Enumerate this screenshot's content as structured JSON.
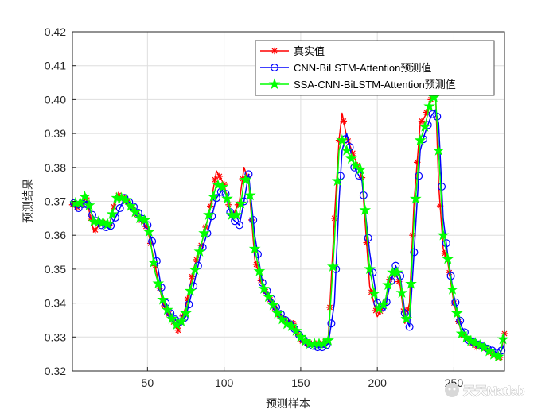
{
  "watermark": "天天Matlab",
  "chart_data": {
    "type": "line",
    "xlabel": "预测样本",
    "ylabel": "预测结果",
    "xlim": [
      1,
      283
    ],
    "ylim": [
      0.32,
      0.42
    ],
    "xticks": [
      50,
      100,
      150,
      200,
      250
    ],
    "yticks": [
      0.32,
      0.33,
      0.34,
      0.35,
      0.36,
      0.37,
      0.38,
      0.39,
      0.4,
      0.41,
      0.42
    ],
    "grid": true,
    "legend_position": "top-right",
    "series": [
      {
        "name": "真实值",
        "color": "#ff0000",
        "marker": "asterisk",
        "keypoints": [
          [
            1,
            0.369
          ],
          [
            5,
            0.368
          ],
          [
            10,
            0.371
          ],
          [
            15,
            0.361
          ],
          [
            20,
            0.364
          ],
          [
            25,
            0.363
          ],
          [
            30,
            0.372
          ],
          [
            35,
            0.371
          ],
          [
            40,
            0.368
          ],
          [
            45,
            0.365
          ],
          [
            50,
            0.362
          ],
          [
            55,
            0.351
          ],
          [
            60,
            0.34
          ],
          [
            65,
            0.336
          ],
          [
            70,
            0.332
          ],
          [
            75,
            0.339
          ],
          [
            80,
            0.35
          ],
          [
            85,
            0.357
          ],
          [
            90,
            0.366
          ],
          [
            95,
            0.379
          ],
          [
            100,
            0.375
          ],
          [
            105,
            0.365
          ],
          [
            110,
            0.37
          ],
          [
            113,
            0.38
          ],
          [
            116,
            0.376
          ],
          [
            120,
            0.353
          ],
          [
            125,
            0.345
          ],
          [
            130,
            0.341
          ],
          [
            135,
            0.337
          ],
          [
            140,
            0.335
          ],
          [
            145,
            0.334
          ],
          [
            150,
            0.329
          ],
          [
            155,
            0.328
          ],
          [
            160,
            0.328
          ],
          [
            165,
            0.328
          ],
          [
            168,
            0.33
          ],
          [
            172,
            0.365
          ],
          [
            175,
            0.388
          ],
          [
            177,
            0.396
          ],
          [
            180,
            0.389
          ],
          [
            185,
            0.383
          ],
          [
            190,
            0.377
          ],
          [
            195,
            0.345
          ],
          [
            200,
            0.336
          ],
          [
            205,
            0.34
          ],
          [
            208,
            0.347
          ],
          [
            212,
            0.349
          ],
          [
            215,
            0.345
          ],
          [
            218,
            0.334
          ],
          [
            221,
            0.34
          ],
          [
            224,
            0.37
          ],
          [
            228,
            0.393
          ],
          [
            231,
            0.395
          ],
          [
            235,
            0.4
          ],
          [
            238,
            0.402
          ],
          [
            240,
            0.375
          ],
          [
            243,
            0.356
          ],
          [
            246,
            0.352
          ],
          [
            250,
            0.34
          ],
          [
            255,
            0.331
          ],
          [
            260,
            0.329
          ],
          [
            265,
            0.327
          ],
          [
            270,
            0.327
          ],
          [
            275,
            0.325
          ],
          [
            280,
            0.324
          ],
          [
            283,
            0.331
          ]
        ]
      },
      {
        "name": "CNN-BiLSTM-Attention预测值",
        "color": "#0000ff",
        "marker": "circle",
        "keypoints": [
          [
            1,
            0.37
          ],
          [
            5,
            0.368
          ],
          [
            10,
            0.37
          ],
          [
            15,
            0.365
          ],
          [
            20,
            0.363
          ],
          [
            25,
            0.362
          ],
          [
            30,
            0.366
          ],
          [
            35,
            0.371
          ],
          [
            40,
            0.369
          ],
          [
            45,
            0.366
          ],
          [
            50,
            0.363
          ],
          [
            55,
            0.355
          ],
          [
            60,
            0.342
          ],
          [
            65,
            0.337
          ],
          [
            70,
            0.334
          ],
          [
            75,
            0.336
          ],
          [
            80,
            0.345
          ],
          [
            85,
            0.355
          ],
          [
            90,
            0.362
          ],
          [
            95,
            0.371
          ],
          [
            100,
            0.374
          ],
          [
            105,
            0.365
          ],
          [
            110,
            0.363
          ],
          [
            113,
            0.37
          ],
          [
            116,
            0.378
          ],
          [
            120,
            0.36
          ],
          [
            125,
            0.346
          ],
          [
            130,
            0.342
          ],
          [
            135,
            0.338
          ],
          [
            140,
            0.335
          ],
          [
            145,
            0.333
          ],
          [
            150,
            0.33
          ],
          [
            155,
            0.328
          ],
          [
            160,
            0.327
          ],
          [
            165,
            0.327
          ],
          [
            168,
            0.328
          ],
          [
            172,
            0.34
          ],
          [
            175,
            0.37
          ],
          [
            177,
            0.385
          ],
          [
            180,
            0.39
          ],
          [
            185,
            0.38
          ],
          [
            190,
            0.376
          ],
          [
            195,
            0.355
          ],
          [
            200,
            0.34
          ],
          [
            205,
            0.338
          ],
          [
            208,
            0.345
          ],
          [
            212,
            0.351
          ],
          [
            215,
            0.348
          ],
          [
            218,
            0.337
          ],
          [
            221,
            0.333
          ],
          [
            224,
            0.355
          ],
          [
            228,
            0.385
          ],
          [
            231,
            0.39
          ],
          [
            235,
            0.395
          ],
          [
            238,
            0.397
          ],
          [
            240,
            0.393
          ],
          [
            243,
            0.365
          ],
          [
            246,
            0.354
          ],
          [
            250,
            0.342
          ],
          [
            255,
            0.333
          ],
          [
            260,
            0.329
          ],
          [
            265,
            0.328
          ],
          [
            270,
            0.327
          ],
          [
            275,
            0.326
          ],
          [
            280,
            0.325
          ],
          [
            283,
            0.328
          ]
        ]
      },
      {
        "name": "SSA-CNN-BiLSTM-Attention预测值",
        "color": "#00ff00",
        "marker": "pentagram",
        "keypoints": [
          [
            1,
            0.37
          ],
          [
            5,
            0.369
          ],
          [
            10,
            0.372
          ],
          [
            15,
            0.364
          ],
          [
            20,
            0.364
          ],
          [
            25,
            0.363
          ],
          [
            30,
            0.371
          ],
          [
            35,
            0.371
          ],
          [
            40,
            0.368
          ],
          [
            45,
            0.365
          ],
          [
            50,
            0.364
          ],
          [
            55,
            0.349
          ],
          [
            60,
            0.341
          ],
          [
            65,
            0.336
          ],
          [
            70,
            0.333
          ],
          [
            75,
            0.337
          ],
          [
            80,
            0.348
          ],
          [
            85,
            0.357
          ],
          [
            90,
            0.366
          ],
          [
            95,
            0.375
          ],
          [
            100,
            0.374
          ],
          [
            105,
            0.366
          ],
          [
            110,
            0.366
          ],
          [
            113,
            0.376
          ],
          [
            116,
            0.377
          ],
          [
            120,
            0.356
          ],
          [
            125,
            0.345
          ],
          [
            130,
            0.341
          ],
          [
            135,
            0.337
          ],
          [
            140,
            0.334
          ],
          [
            145,
            0.333
          ],
          [
            150,
            0.33
          ],
          [
            155,
            0.328
          ],
          [
            160,
            0.328
          ],
          [
            165,
            0.328
          ],
          [
            168,
            0.329
          ],
          [
            172,
            0.358
          ],
          [
            175,
            0.385
          ],
          [
            177,
            0.388
          ],
          [
            180,
            0.385
          ],
          [
            185,
            0.381
          ],
          [
            190,
            0.379
          ],
          [
            195,
            0.35
          ],
          [
            200,
            0.338
          ],
          [
            205,
            0.34
          ],
          [
            208,
            0.348
          ],
          [
            212,
            0.35
          ],
          [
            215,
            0.347
          ],
          [
            218,
            0.335
          ],
          [
            221,
            0.336
          ],
          [
            224,
            0.365
          ],
          [
            228,
            0.388
          ],
          [
            231,
            0.392
          ],
          [
            235,
            0.4
          ],
          [
            238,
            0.401
          ],
          [
            240,
            0.385
          ],
          [
            243,
            0.36
          ],
          [
            246,
            0.353
          ],
          [
            250,
            0.341
          ],
          [
            255,
            0.331
          ],
          [
            260,
            0.329
          ],
          [
            265,
            0.328
          ],
          [
            270,
            0.327
          ],
          [
            275,
            0.325
          ],
          [
            280,
            0.324
          ],
          [
            283,
            0.332
          ]
        ]
      }
    ]
  }
}
